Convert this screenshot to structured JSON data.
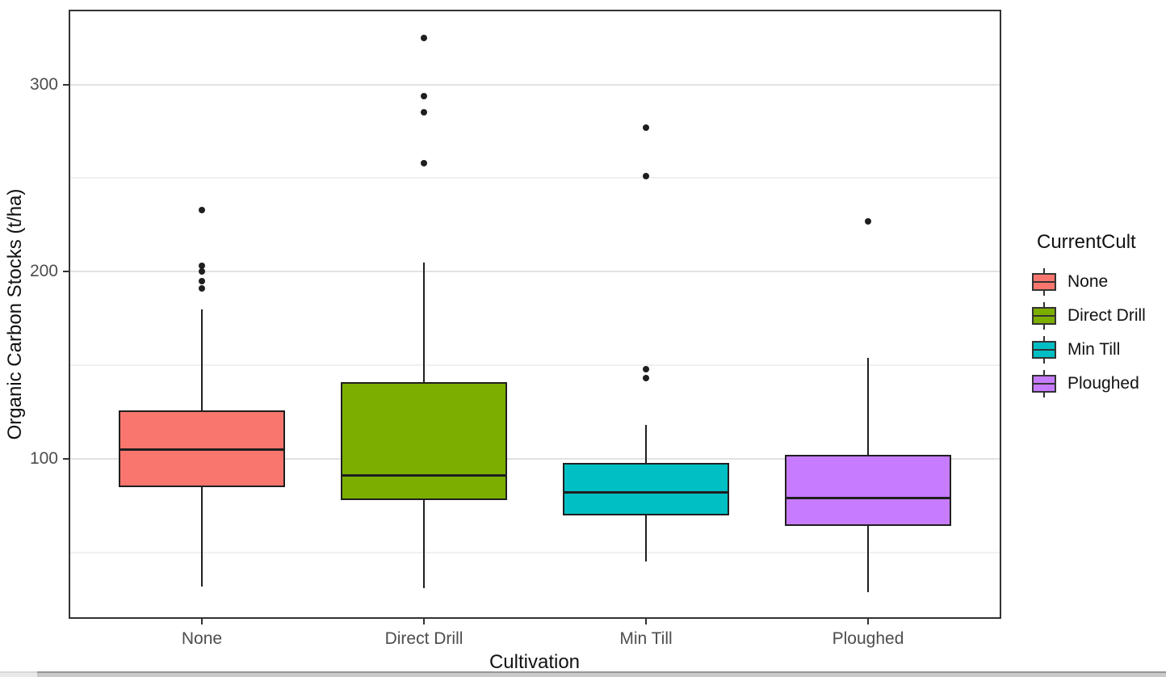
{
  "chart_data": {
    "type": "boxplot",
    "title": "",
    "xlabel": "Cultivation",
    "ylabel": "Organic Carbon Stocks (t/ha)",
    "legend_title": "CurrentCult",
    "legend_position": "right",
    "categories": [
      "None",
      "Direct Drill",
      "Min Till",
      "Ploughed"
    ],
    "colors": [
      "#F8766D",
      "#7CAE00",
      "#00BFC4",
      "#C77CFF"
    ],
    "y_axis": {
      "major_ticks": [
        100,
        200,
        300
      ],
      "minor_ticks": [
        50,
        150,
        250
      ],
      "range": [
        15,
        340
      ],
      "grid": "on"
    },
    "groups": [
      {
        "label": "None",
        "color": "#F8766D",
        "whisker_low": 32,
        "q1": 85,
        "median": 106,
        "q3": 126,
        "whisker_high": 180,
        "outliers": [
          233,
          203,
          200,
          195,
          191
        ]
      },
      {
        "label": "Direct Drill",
        "color": "#7CAE00",
        "whisker_low": 31,
        "q1": 78,
        "median": 92,
        "q3": 141,
        "whisker_high": 205,
        "outliers": [
          325,
          294,
          285,
          258
        ]
      },
      {
        "label": "Min Till",
        "color": "#00BFC4",
        "whisker_low": 45,
        "q1": 70,
        "median": 83,
        "q3": 98,
        "whisker_high": 118,
        "outliers": [
          277,
          251,
          148,
          143
        ]
      },
      {
        "label": "Ploughed",
        "color": "#C77CFF",
        "whisker_low": 29,
        "q1": 64,
        "median": 80,
        "q3": 102,
        "whisker_high": 154,
        "outliers": [
          227
        ]
      }
    ]
  }
}
